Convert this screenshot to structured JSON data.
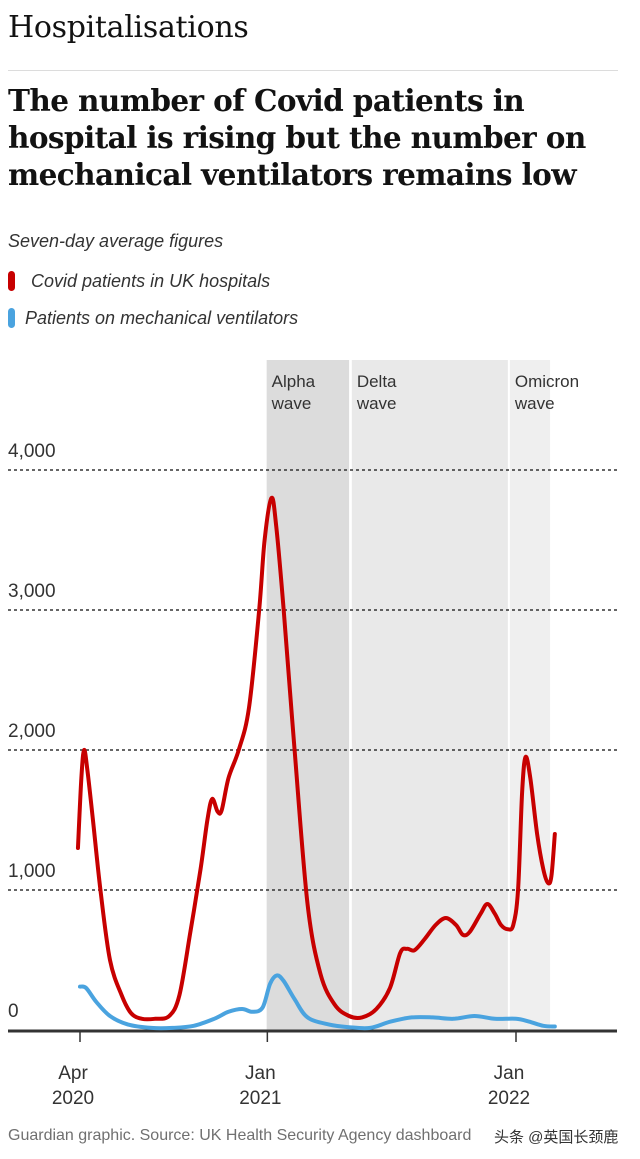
{
  "kicker": "Hospitalisations",
  "headline": "The number of Covid patients in hospital is rising but the number on mechanical ventilators remains low",
  "subtitle": "Seven-day average figures",
  "legend": [
    {
      "label": "Covid patients in UK hospitals",
      "color": "#c70000"
    },
    {
      "label": "Patients on mechanical ventilators",
      "color": "#4aa3df"
    }
  ],
  "credit": "Guardian graphic. Source: UK Health Security Agency dashboard",
  "watermark": "头条 @英国长颈鹿",
  "chart_data": {
    "type": "line",
    "title": "The number of Covid patients in hospital is rising but the number on mechanical ventilators remains low",
    "subtitle": "Seven-day average figures",
    "xlabel": "",
    "ylabel": "",
    "ylim": [
      0,
      4000
    ],
    "xlim": [
      "2020-03-20",
      "2022-02-20"
    ],
    "grid": "horizontal dashed",
    "legend_position": "top-left",
    "yticks": [
      {
        "value": 0,
        "label": "0"
      },
      {
        "value": 1000,
        "label": "1,000"
      },
      {
        "value": 2000,
        "label": "2,000"
      },
      {
        "value": 3000,
        "label": "3,000"
      },
      {
        "value": 4000,
        "label": "4,000"
      }
    ],
    "xticks": [
      {
        "date": "2020-04-01",
        "label": [
          "Apr",
          "2020"
        ]
      },
      {
        "date": "2021-01-01",
        "label": [
          "Jan",
          "2021"
        ]
      },
      {
        "date": "2022-01-01",
        "label": [
          "Jan",
          "2022"
        ]
      }
    ],
    "bands": [
      {
        "label": [
          "Alpha",
          "wave"
        ],
        "start": "2020-12-31",
        "end": "2021-05-01",
        "color": "#dcdcdc"
      },
      {
        "label": [
          "Delta",
          "wave"
        ],
        "start": "2021-05-05",
        "end": "2021-12-20",
        "color": "#e9e9e9"
      },
      {
        "label": [
          "Omicron",
          "wave"
        ],
        "start": "2021-12-23",
        "end": "2022-02-20",
        "color": "#efefef"
      }
    ],
    "series": [
      {
        "name": "Covid patients in UK hospitals",
        "color": "#c70000",
        "points": [
          [
            "2020-03-29",
            1300
          ],
          [
            "2020-04-03",
            1800
          ],
          [
            "2020-04-07",
            2000
          ],
          [
            "2020-04-12",
            1850
          ],
          [
            "2020-04-20",
            1500
          ],
          [
            "2020-05-01",
            1000
          ],
          [
            "2020-05-15",
            500
          ],
          [
            "2020-06-01",
            250
          ],
          [
            "2020-06-15",
            120
          ],
          [
            "2020-07-01",
            80
          ],
          [
            "2020-07-20",
            80
          ],
          [
            "2020-08-10",
            100
          ],
          [
            "2020-08-25",
            250
          ],
          [
            "2020-09-10",
            700
          ],
          [
            "2020-09-25",
            1150
          ],
          [
            "2020-10-05",
            1500
          ],
          [
            "2020-10-12",
            1650
          ],
          [
            "2020-10-20",
            1560
          ],
          [
            "2020-10-26",
            1570
          ],
          [
            "2020-11-05",
            1800
          ],
          [
            "2020-11-20",
            2000
          ],
          [
            "2020-12-05",
            2300
          ],
          [
            "2020-12-20",
            3000
          ],
          [
            "2020-12-28",
            3500
          ],
          [
            "2021-01-07",
            3800
          ],
          [
            "2021-01-14",
            3600
          ],
          [
            "2021-01-25",
            3000
          ],
          [
            "2021-02-10",
            2000
          ],
          [
            "2021-03-01",
            900
          ],
          [
            "2021-03-20",
            400
          ],
          [
            "2021-04-10",
            180
          ],
          [
            "2021-05-01",
            100
          ],
          [
            "2021-05-20",
            90
          ],
          [
            "2021-06-10",
            150
          ],
          [
            "2021-06-30",
            300
          ],
          [
            "2021-07-15",
            550
          ],
          [
            "2021-07-25",
            580
          ],
          [
            "2021-08-05",
            570
          ],
          [
            "2021-08-20",
            650
          ],
          [
            "2021-09-05",
            750
          ],
          [
            "2021-09-20",
            800
          ],
          [
            "2021-10-05",
            750
          ],
          [
            "2021-10-15",
            680
          ],
          [
            "2021-10-25",
            700
          ],
          [
            "2021-11-10",
            830
          ],
          [
            "2021-11-20",
            900
          ],
          [
            "2021-12-01",
            830
          ],
          [
            "2021-12-10",
            750
          ],
          [
            "2021-12-20",
            720
          ],
          [
            "2021-12-28",
            750
          ],
          [
            "2022-01-04",
            1000
          ],
          [
            "2022-01-10",
            1700
          ],
          [
            "2022-01-15",
            1950
          ],
          [
            "2022-01-22",
            1800
          ],
          [
            "2022-02-01",
            1400
          ],
          [
            "2022-02-10",
            1150
          ],
          [
            "2022-02-17",
            1050
          ],
          [
            "2022-02-22",
            1100
          ],
          [
            "2022-02-27",
            1400
          ]
        ]
      },
      {
        "name": "Patients on mechanical ventilators",
        "color": "#4aa3df",
        "points": [
          [
            "2020-04-01",
            310
          ],
          [
            "2020-04-10",
            300
          ],
          [
            "2020-04-25",
            200
          ],
          [
            "2020-05-15",
            100
          ],
          [
            "2020-06-10",
            40
          ],
          [
            "2020-07-15",
            15
          ],
          [
            "2020-08-15",
            15
          ],
          [
            "2020-09-15",
            30
          ],
          [
            "2020-10-15",
            80
          ],
          [
            "2020-11-05",
            130
          ],
          [
            "2020-11-25",
            150
          ],
          [
            "2020-12-10",
            130
          ],
          [
            "2020-12-25",
            160
          ],
          [
            "2021-01-05",
            330
          ],
          [
            "2021-01-15",
            390
          ],
          [
            "2021-01-25",
            350
          ],
          [
            "2021-02-10",
            220
          ],
          [
            "2021-03-01",
            90
          ],
          [
            "2021-04-01",
            40
          ],
          [
            "2021-05-01",
            20
          ],
          [
            "2021-06-01",
            15
          ],
          [
            "2021-07-01",
            60
          ],
          [
            "2021-08-01",
            90
          ],
          [
            "2021-09-01",
            90
          ],
          [
            "2021-10-01",
            80
          ],
          [
            "2021-11-01",
            100
          ],
          [
            "2021-12-01",
            80
          ],
          [
            "2022-01-01",
            80
          ],
          [
            "2022-01-20",
            60
          ],
          [
            "2022-02-10",
            30
          ],
          [
            "2022-02-27",
            25
          ]
        ]
      }
    ]
  }
}
